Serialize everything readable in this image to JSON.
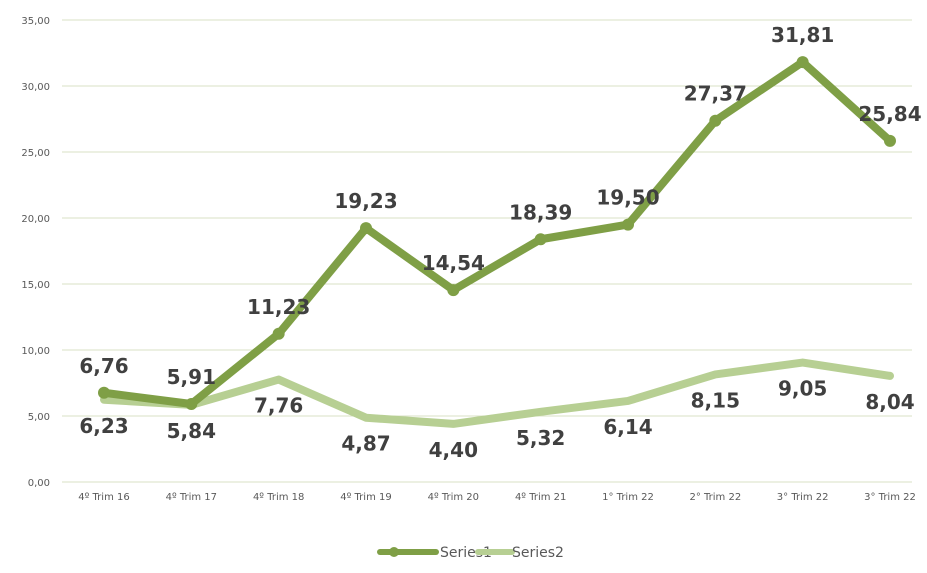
{
  "chart_data": {
    "type": "line",
    "categories": [
      "4º Trim 16",
      "4º Trim 17",
      "4º Trim 18",
      "4º Trim 19",
      "4º Trim 20",
      "4º Trim 21",
      "1° Trim 22",
      "2° Trim 22",
      "3° Trim 22",
      "3° Trim 22"
    ],
    "series": [
      {
        "name": "Series1",
        "values": [
          6.76,
          5.91,
          11.23,
          19.23,
          14.54,
          18.39,
          19.5,
          27.37,
          31.81,
          25.84
        ],
        "labels": [
          "6,76",
          "5,91",
          "11,23",
          "19,23",
          "14,54",
          "18,39",
          "19,50",
          "27,37",
          "31,81",
          "25,84"
        ],
        "color": "#7f9f46"
      },
      {
        "name": "Series2",
        "values": [
          6.23,
          5.84,
          7.76,
          4.87,
          4.4,
          5.32,
          6.14,
          8.15,
          9.05,
          8.04
        ],
        "labels": [
          "6,23",
          "5,84",
          "7,76",
          "4,87",
          "4,40",
          "5,32",
          "6,14",
          "8,15",
          "9,05",
          "8,04"
        ],
        "color": "#b7cf93"
      }
    ],
    "yticks": [
      0,
      5,
      10,
      15,
      20,
      25,
      30,
      35
    ],
    "ytick_labels": [
      "0,00",
      "5,00",
      "10,00",
      "15,00",
      "20,00",
      "25,00",
      "30,00",
      "35,00"
    ],
    "ylim": [
      0,
      35
    ],
    "title": "",
    "xlabel": "",
    "ylabel": "",
    "grid": true,
    "gridline_color": "#d9e2c4",
    "legend_position": "bottom"
  }
}
